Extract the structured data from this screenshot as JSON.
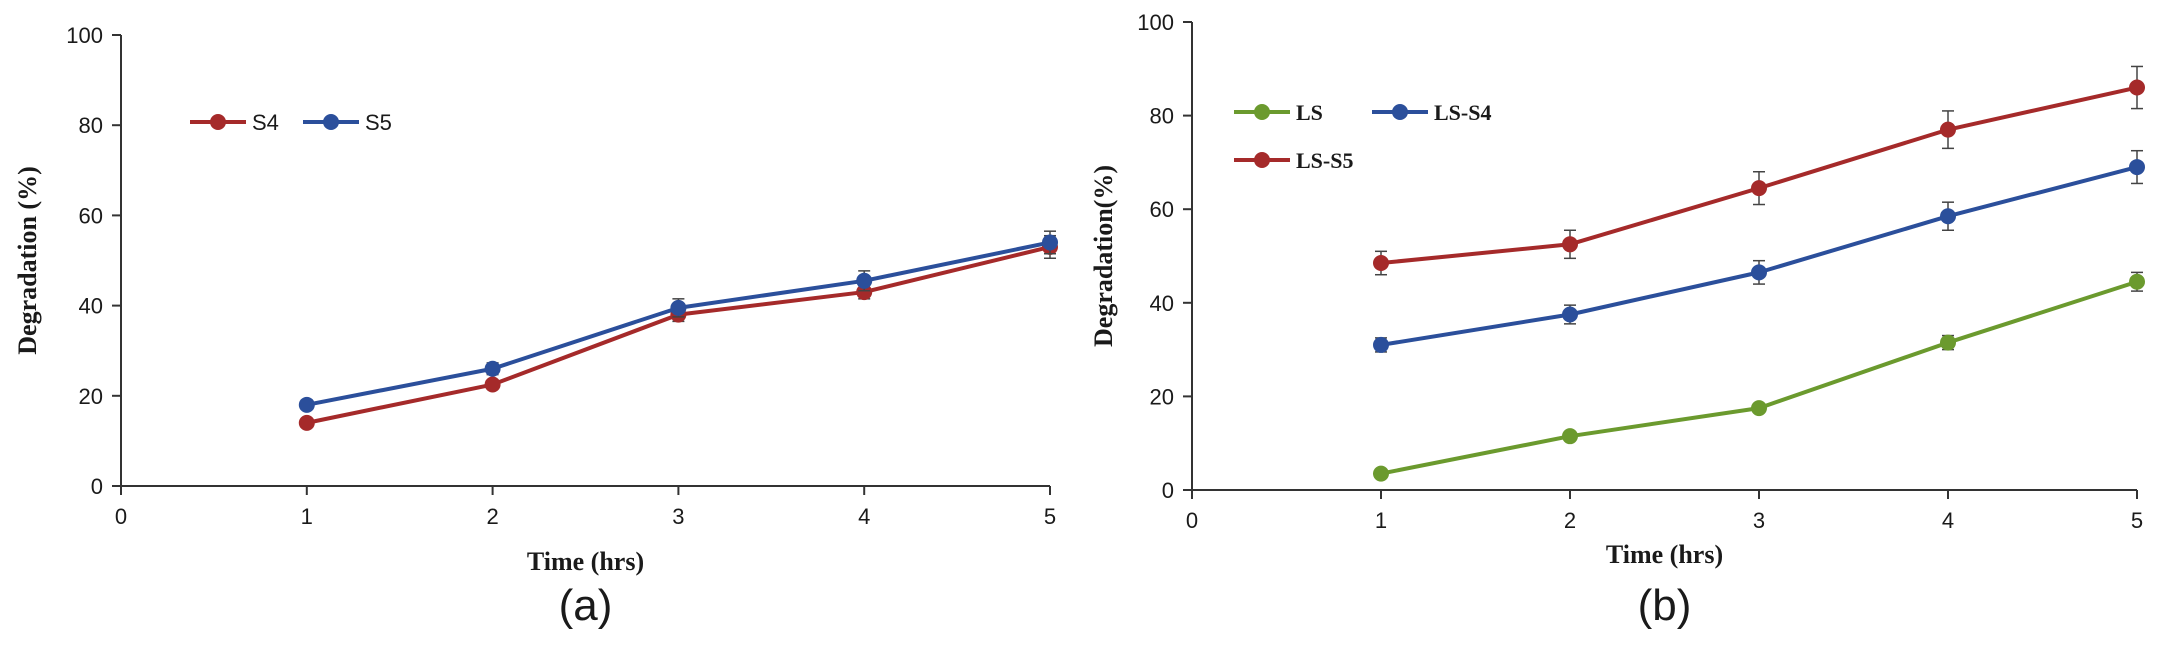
{
  "chart_data": [
    {
      "type": "line",
      "panel_label": "(a)",
      "xlabel": "Time (hrs)",
      "ylabel": "Degradation (%)",
      "xlim": [
        0,
        5
      ],
      "ylim": [
        0,
        100
      ],
      "x_ticks": [
        "0",
        "1",
        "2",
        "3",
        "4",
        "5"
      ],
      "y_ticks": [
        "0",
        "20",
        "40",
        "60",
        "80",
        "100"
      ],
      "legend_position": "top-left",
      "series": [
        {
          "name": "S4",
          "color": "#a52a2a",
          "x": [
            1,
            2,
            3,
            4,
            5
          ],
          "values": [
            14,
            22.5,
            38,
            43,
            53
          ],
          "errors": [
            0.6,
            0.7,
            1.5,
            1.5,
            2.5
          ]
        },
        {
          "name": "S5",
          "color": "#2b4f9b",
          "x": [
            1,
            2,
            3,
            4,
            5
          ],
          "values": [
            18,
            26,
            39.5,
            45.5,
            54
          ],
          "errors": [
            0.6,
            1.3,
            2.0,
            2.2,
            2.5
          ]
        }
      ]
    },
    {
      "type": "line",
      "panel_label": "(b)",
      "xlabel": "Time (hrs)",
      "ylabel": "Degradation(%)",
      "xlim": [
        0,
        5
      ],
      "ylim": [
        0,
        100
      ],
      "x_ticks": [
        "0",
        "1",
        "2",
        "3",
        "4",
        "5"
      ],
      "y_ticks": [
        "0",
        "20",
        "40",
        "60",
        "80",
        "100"
      ],
      "legend_position": "top-left",
      "series": [
        {
          "name": "LS",
          "color": "#6b9a2e",
          "x": [
            1,
            2,
            3,
            4,
            5
          ],
          "values": [
            3.5,
            11.5,
            17.5,
            31.5,
            44.5
          ],
          "errors": [
            0.5,
            0.8,
            0.8,
            1.5,
            2.0
          ]
        },
        {
          "name": "LS-S4",
          "color": "#2b4f9b",
          "x": [
            1,
            2,
            3,
            4,
            5
          ],
          "values": [
            31,
            37.5,
            46.5,
            58.5,
            69
          ],
          "errors": [
            1.5,
            2.0,
            2.5,
            3.0,
            3.5
          ]
        },
        {
          "name": "LS-S5",
          "color": "#a52a2a",
          "x": [
            1,
            2,
            3,
            4,
            5
          ],
          "values": [
            48.5,
            52.5,
            64.5,
            77,
            86
          ],
          "errors": [
            2.5,
            3.0,
            3.5,
            4.0,
            4.5
          ]
        }
      ]
    }
  ]
}
